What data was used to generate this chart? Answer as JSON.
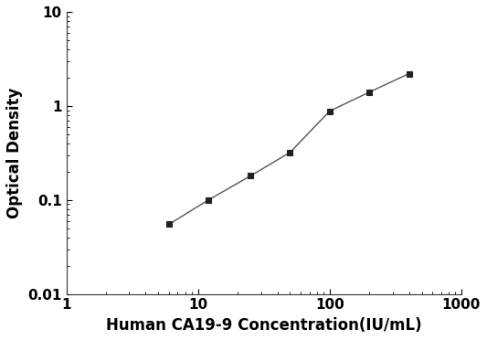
{
  "x": [
    6,
    12,
    25,
    50,
    100,
    200,
    400
  ],
  "y": [
    0.055,
    0.1,
    0.18,
    0.32,
    0.88,
    1.4,
    2.2
  ],
  "xlabel": "Human CA19-9 Concentration(IU/mL)",
  "ylabel": "Optical Density",
  "xlim": [
    1,
    1000
  ],
  "ylim": [
    0.01,
    10
  ],
  "line_color": "#555555",
  "marker": "s",
  "marker_color": "#222222",
  "marker_size": 5,
  "linewidth": 1.0,
  "background_color": "#ffffff",
  "xlabel_fontsize": 12,
  "ylabel_fontsize": 12,
  "tick_fontsize": 11,
  "ytick_labels": [
    "0.01",
    "0.1",
    "1",
    "10"
  ],
  "ytick_values": [
    0.01,
    0.1,
    1,
    10
  ],
  "xtick_labels": [
    "1",
    "10",
    "100",
    "1000"
  ],
  "xtick_values": [
    1,
    10,
    100,
    1000
  ]
}
